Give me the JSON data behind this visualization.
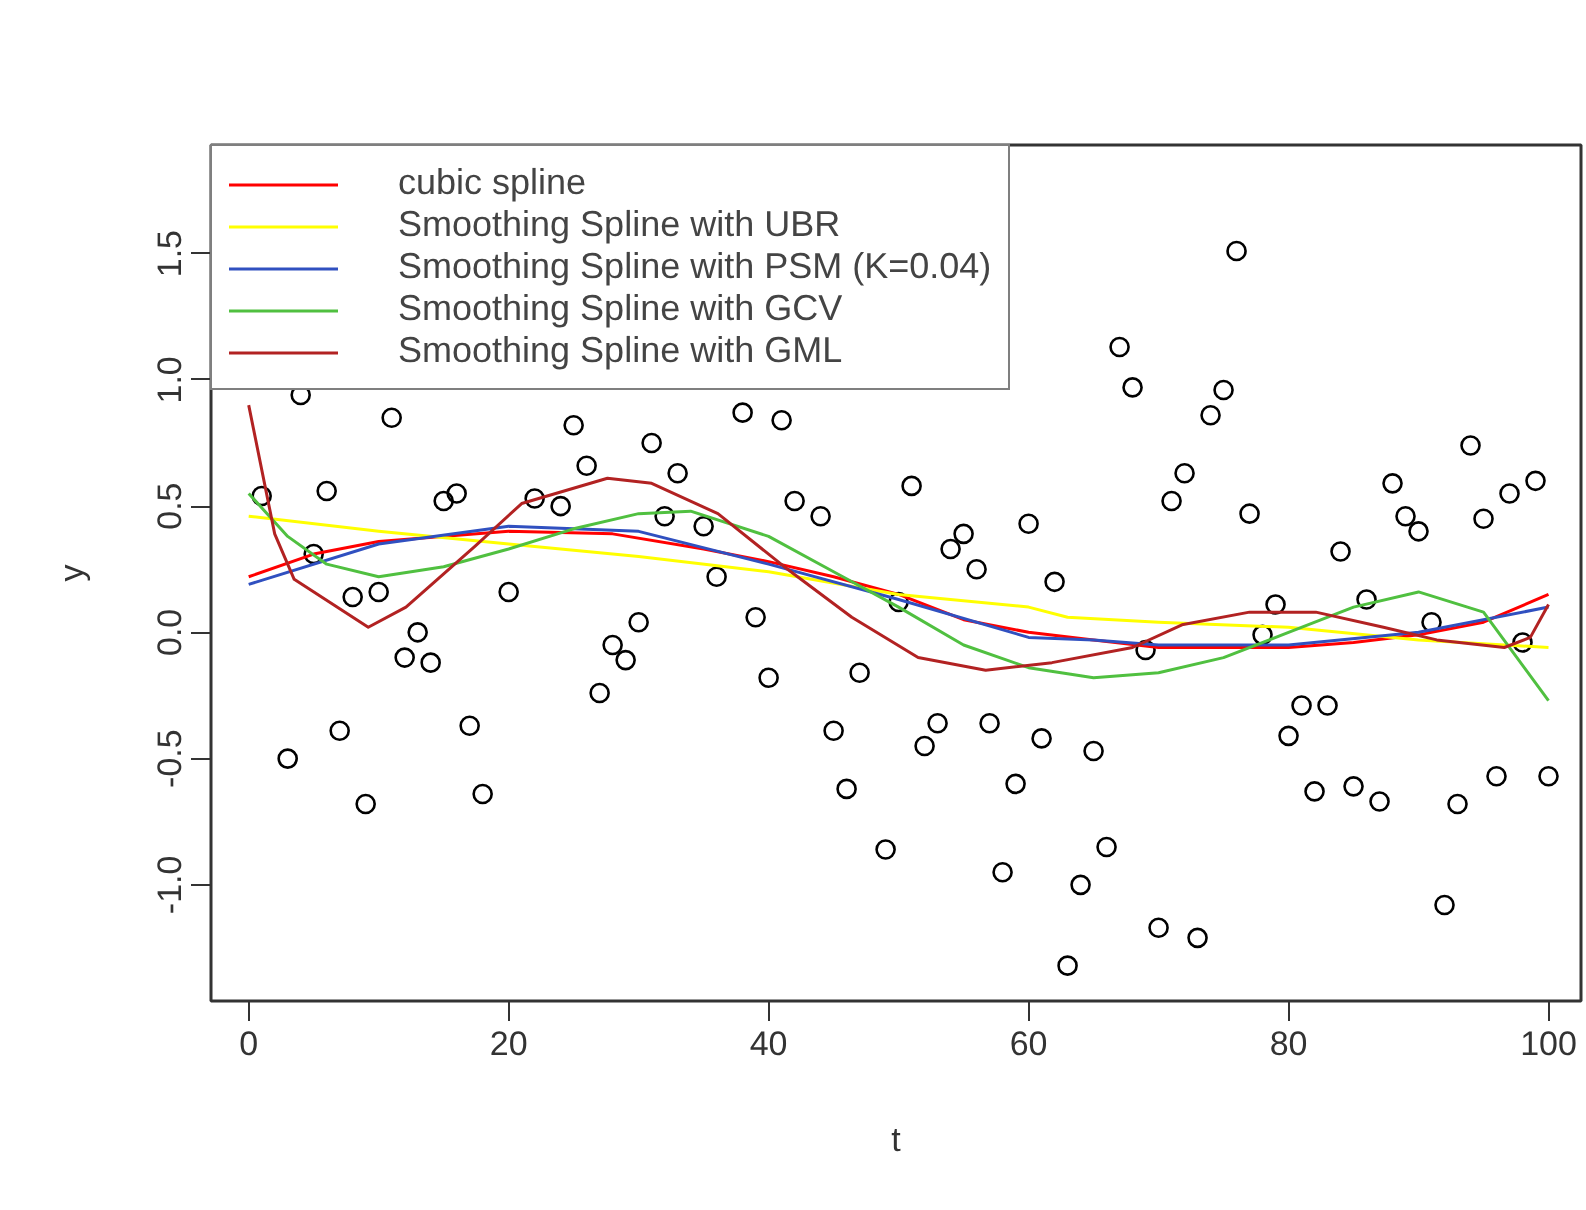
{
  "chart_data": {
    "type": "scatter",
    "xlabel": "t",
    "ylabel": "y",
    "xlim": [
      -2.9,
      102.5
    ],
    "ylim": [
      -1.46,
      1.93
    ],
    "xticks": [
      0,
      20,
      40,
      60,
      80,
      100
    ],
    "yticks": [
      {
        "value": -1.0,
        "label": "-1.0"
      },
      {
        "value": -0.5,
        "label": "-0.5"
      },
      {
        "value": 0.0,
        "label": "0.0"
      },
      {
        "value": 0.5,
        "label": "0.5"
      },
      {
        "value": 1.0,
        "label": "1.0"
      },
      {
        "value": 1.5,
        "label": "1.5"
      }
    ],
    "grid": false,
    "legend": "top left",
    "series": [
      {
        "marker": "circle",
        "color": "#000000",
        "x": [
          1,
          3,
          4,
          5,
          6,
          7,
          8,
          9,
          10,
          11,
          12,
          13,
          14,
          15,
          16,
          17,
          18,
          20,
          22,
          24,
          25,
          26,
          27,
          28,
          29,
          30,
          31,
          32,
          33,
          35,
          36,
          38,
          39,
          40,
          41,
          42,
          44,
          45,
          46,
          47,
          49,
          50,
          51,
          52,
          53,
          54,
          55,
          56,
          57,
          58,
          59,
          60,
          61,
          62,
          63,
          64,
          65,
          66,
          67,
          68,
          69,
          70,
          71,
          72,
          73,
          74,
          75,
          76,
          77,
          78,
          79,
          80,
          81,
          82,
          83,
          84,
          85,
          86,
          87,
          88,
          89,
          90,
          91,
          92,
          93,
          94,
          95,
          96,
          97,
          98,
          99,
          100
        ],
        "values": [
          0.54,
          -0.5,
          0.94,
          0.31,
          0.56,
          -0.39,
          0.14,
          -0.68,
          0.16,
          0.85,
          -0.1,
          0.0,
          -0.12,
          0.52,
          0.55,
          -0.37,
          -0.64,
          0.16,
          0.53,
          0.5,
          0.82,
          0.66,
          -0.24,
          -0.05,
          -0.11,
          0.04,
          0.75,
          0.46,
          0.63,
          0.42,
          0.22,
          0.87,
          0.06,
          -0.18,
          0.84,
          0.52,
          0.46,
          -0.39,
          -0.62,
          -0.16,
          -0.86,
          0.12,
          0.58,
          -0.45,
          -0.36,
          0.33,
          0.39,
          0.25,
          -0.36,
          -0.95,
          -0.6,
          0.43,
          -0.42,
          0.2,
          -1.32,
          -1.0,
          -0.47,
          -0.85,
          1.13,
          0.97,
          -0.07,
          -1.17,
          0.52,
          0.63,
          -1.21,
          0.86,
          0.96,
          1.51,
          0.47,
          -0.01,
          0.11,
          -0.41,
          -0.29,
          -0.63,
          -0.29,
          0.32,
          -0.61,
          0.13,
          -0.67,
          0.59,
          0.46,
          0.4,
          0.04,
          -1.08,
          -0.68,
          0.74,
          0.45,
          -0.57,
          0.55,
          -0.04,
          0.6,
          -0.57
        ]
      },
      {
        "type": "line",
        "name": "cubic spline",
        "color": "#ff0000",
        "x": [
          0,
          5,
          10,
          20,
          28,
          35,
          40,
          45,
          50,
          55,
          60,
          65,
          70,
          80,
          85,
          90,
          95,
          100
        ],
        "values": [
          0.22,
          0.31,
          0.36,
          0.4,
          0.39,
          0.33,
          0.28,
          0.22,
          0.15,
          0.05,
          0.0,
          -0.03,
          -0.06,
          -0.06,
          -0.04,
          -0.01,
          0.04,
          0.15
        ]
      },
      {
        "type": "line",
        "name": "Smoothing Spline with UBR",
        "color": "#ffff00",
        "x": [
          0,
          10,
          20,
          30,
          40,
          50,
          60,
          63,
          70,
          80,
          90,
          100
        ],
        "values": [
          0.46,
          0.4,
          0.35,
          0.3,
          0.24,
          0.15,
          0.1,
          0.06,
          0.04,
          0.02,
          -0.03,
          -0.06
        ]
      },
      {
        "type": "line",
        "name": "Smoothing Spline with PSM (K=0.04)",
        "color": "#3050c0",
        "x": [
          0,
          10,
          20,
          30,
          40,
          50,
          60,
          65,
          70,
          80,
          90,
          100
        ],
        "values": [
          0.19,
          0.35,
          0.42,
          0.4,
          0.27,
          0.13,
          -0.02,
          -0.03,
          -0.05,
          -0.05,
          0.0,
          0.1
        ]
      },
      {
        "type": "line",
        "name": "Smoothing Spline with GCV",
        "color": "#50c040",
        "x": [
          0,
          3,
          6,
          10,
          15,
          20,
          25,
          30,
          34,
          40,
          45,
          50,
          55,
          60,
          65,
          70,
          75,
          80,
          85,
          90,
          95,
          100
        ],
        "values": [
          0.55,
          0.38,
          0.27,
          0.22,
          0.26,
          0.33,
          0.41,
          0.47,
          0.48,
          0.38,
          0.24,
          0.1,
          -0.05,
          -0.14,
          -0.18,
          -0.16,
          -0.1,
          0.0,
          0.1,
          0.16,
          0.08,
          -0.27
        ]
      },
      {
        "type": "line",
        "name": "Smoothing Spline with GML",
        "color": "#b22222",
        "x": [
          0,
          2,
          3.5,
          9.2,
          12.1,
          17.4,
          21,
          27.6,
          31,
          36.1,
          41.2,
          46.4,
          51.5,
          56.7,
          61.8,
          68,
          71.8,
          77,
          82.1,
          87.3,
          91.4,
          96.6,
          98.6,
          100
        ],
        "values": [
          0.9,
          0.39,
          0.21,
          0.02,
          0.1,
          0.34,
          0.51,
          0.61,
          0.59,
          0.47,
          0.26,
          0.06,
          -0.1,
          -0.15,
          -0.12,
          -0.06,
          0.03,
          0.08,
          0.08,
          0.02,
          -0.03,
          -0.06,
          -0.02,
          0.11
        ]
      }
    ]
  }
}
